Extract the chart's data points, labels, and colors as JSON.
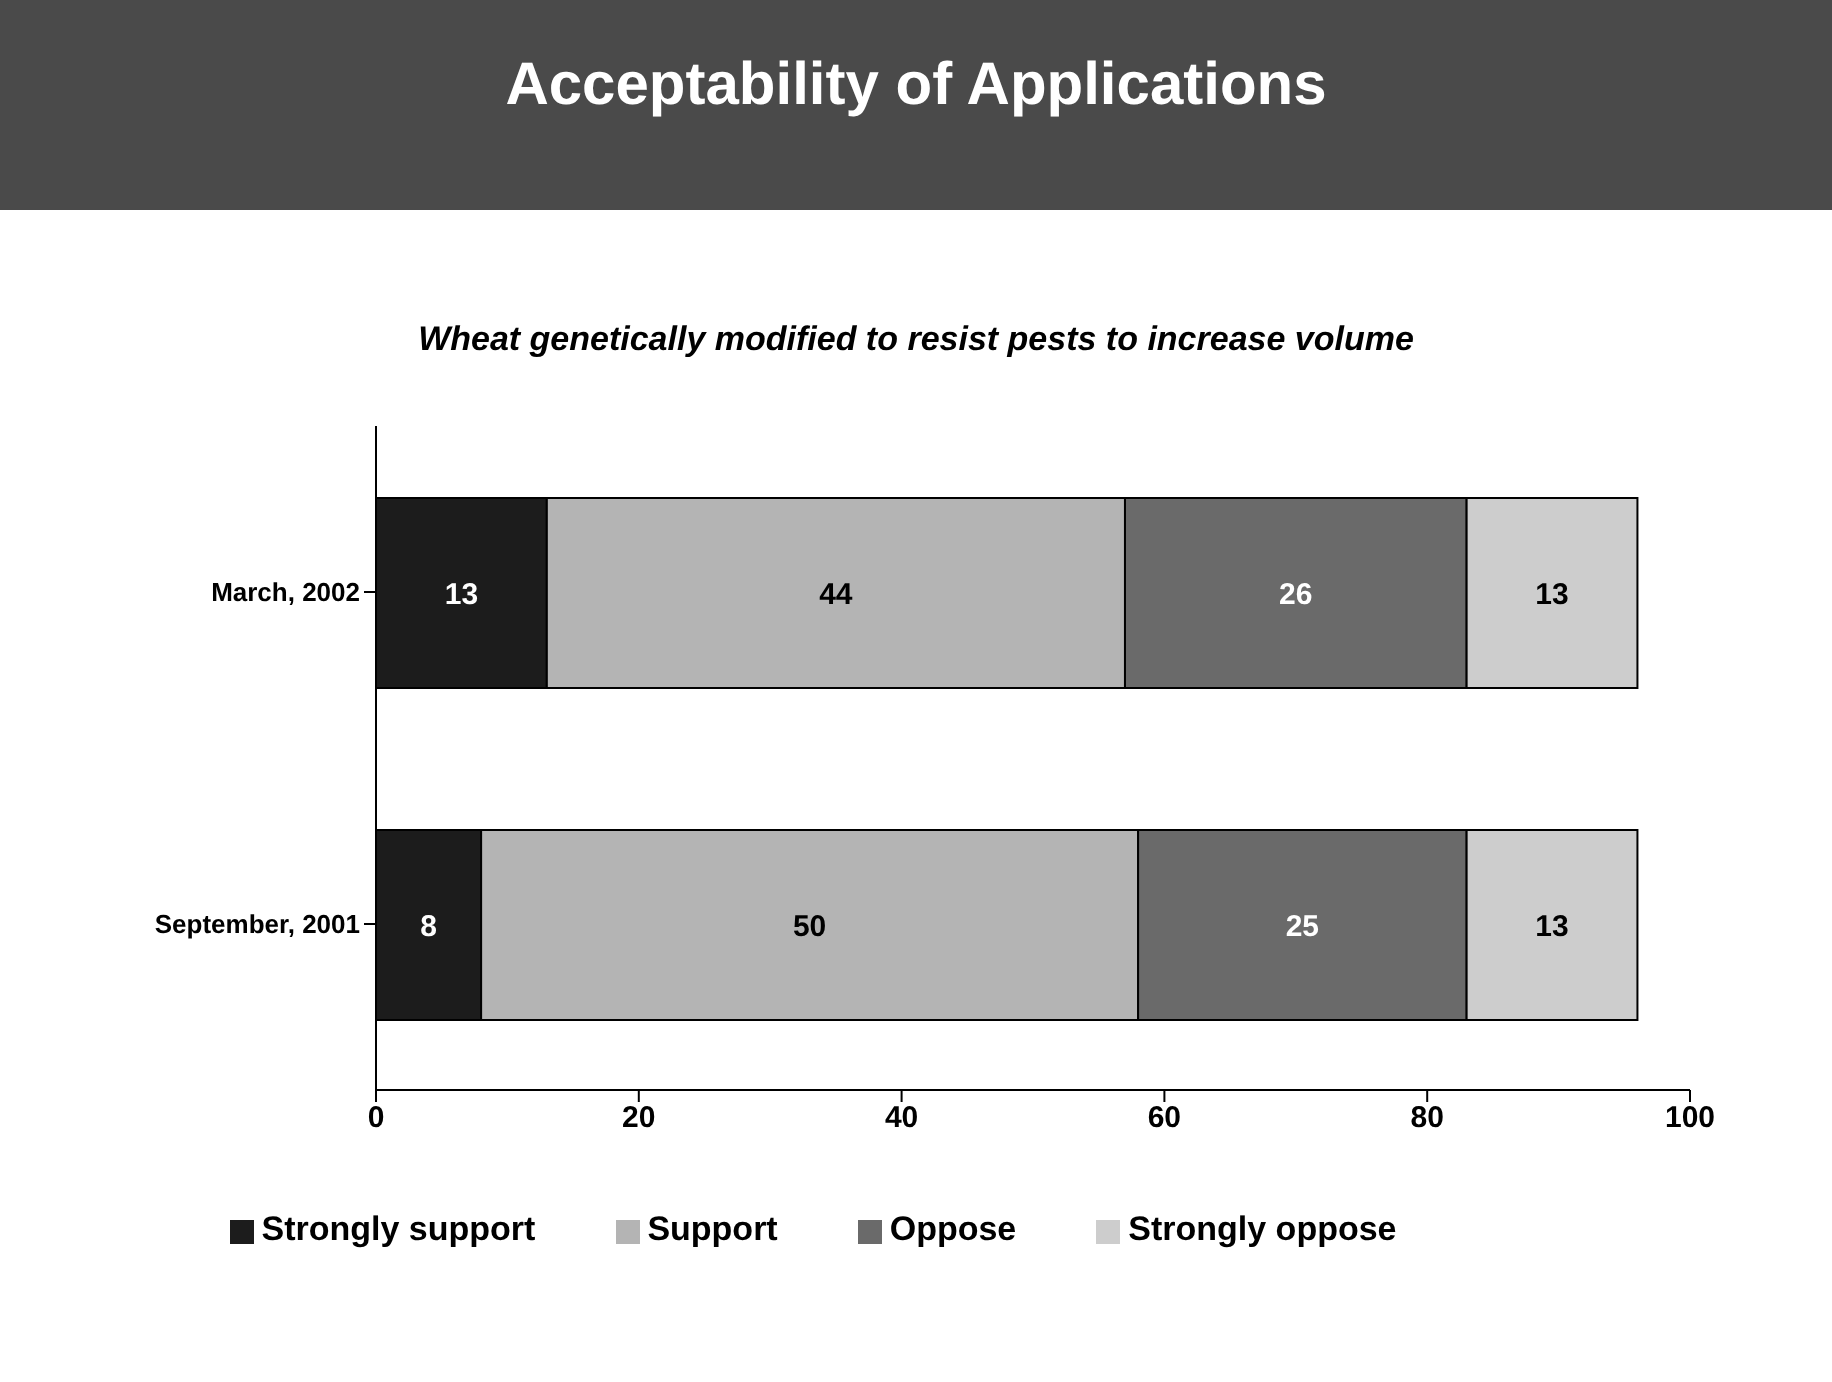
{
  "chart_data": {
    "type": "bar",
    "orientation": "horizontal",
    "stacked": true,
    "title": "Acceptability of Applications",
    "subtitle": "Wheat genetically modified to resist pests to increase volume",
    "categories": [
      "March, 2002",
      "September, 2001"
    ],
    "series": [
      {
        "name": "Strongly support",
        "color": "#1c1c1c",
        "values": [
          13,
          8
        ]
      },
      {
        "name": "Support",
        "color": "#b4b4b4",
        "values": [
          44,
          50
        ]
      },
      {
        "name": "Oppose",
        "color": "#6a6a6a",
        "values": [
          26,
          25
        ]
      },
      {
        "name": "Strongly oppose",
        "color": "#cdcdcd",
        "values": [
          13,
          13
        ]
      }
    ],
    "xlim": [
      0,
      100
    ],
    "xticks": [
      0,
      20,
      40,
      60,
      80,
      100
    ],
    "data_labels": true,
    "legend": "bottom",
    "grid": false
  }
}
